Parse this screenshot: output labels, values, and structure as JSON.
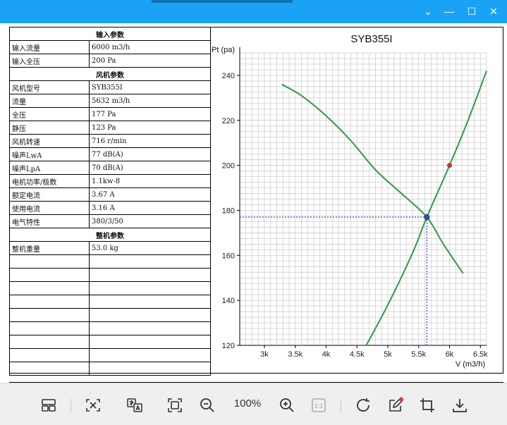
{
  "window": {
    "controls": {
      "dropdown": "⌄",
      "minimize": "—",
      "maximize": "☐",
      "close": "✕"
    },
    "accent": "#1aa3f5"
  },
  "table": {
    "rows": [
      {
        "type": "section",
        "label": "输入参数"
      },
      {
        "type": "row",
        "label": "输入流量",
        "value": "6000 m3/h"
      },
      {
        "type": "row",
        "label": "输入全压",
        "value": "200 Pa"
      },
      {
        "type": "section",
        "label": "风机参数"
      },
      {
        "type": "row",
        "label": "风机型号",
        "value": "SYB355I"
      },
      {
        "type": "row",
        "label": "流量",
        "value": "5632 m3/h"
      },
      {
        "type": "row",
        "label": "全压",
        "value": "177 Pa"
      },
      {
        "type": "row",
        "label": "静压",
        "value": "123 Pa"
      },
      {
        "type": "row",
        "label": "风机转速",
        "value": "716 r/min"
      },
      {
        "type": "row",
        "label": "噪声LwA",
        "value": "77 dB(A)"
      },
      {
        "type": "row",
        "label": "噪声LpA",
        "value": "70 dB(A)"
      },
      {
        "type": "row",
        "label": "电机功率/极数",
        "value": "1.1kw-8"
      },
      {
        "type": "row",
        "label": "额定电流",
        "value": "3.67 A"
      },
      {
        "type": "row",
        "label": "使用电流",
        "value": "3.16 A"
      },
      {
        "type": "row",
        "label": "电气特性",
        "value": "380/3/50"
      },
      {
        "type": "section",
        "label": "整机参数"
      },
      {
        "type": "row",
        "label": "整机重量",
        "value": "53.0 kg"
      },
      {
        "type": "row",
        "label": "",
        "value": ""
      },
      {
        "type": "row",
        "label": "",
        "value": ""
      },
      {
        "type": "row",
        "label": "",
        "value": ""
      },
      {
        "type": "row",
        "label": "",
        "value": ""
      },
      {
        "type": "row",
        "label": "",
        "value": ""
      },
      {
        "type": "row",
        "label": "",
        "value": ""
      },
      {
        "type": "row",
        "label": "",
        "value": ""
      },
      {
        "type": "row",
        "label": "",
        "value": ""
      },
      {
        "type": "row",
        "label": "",
        "value": ""
      }
    ]
  },
  "chart_data": {
    "type": "line",
    "title": "SYB355I",
    "xlabel": "V (m3/h)",
    "ylabel": "Pt (pa)",
    "xlim": [
      2600,
      6600
    ],
    "ylim": [
      120,
      250
    ],
    "x_ticks": [
      3000,
      3500,
      4000,
      4500,
      5000,
      5500,
      6000,
      6500
    ],
    "x_tick_labels": [
      "3k",
      "3.5k",
      "4k",
      "4.5k",
      "5k",
      "5.5k",
      "6k",
      "6.5k"
    ],
    "y_ticks": [
      120,
      140,
      160,
      180,
      200,
      220,
      240
    ],
    "grid": true,
    "series": [
      {
        "x": [
          3280,
          3600,
          4000,
          4400,
          4800,
          5200,
          5632,
          5900,
          6220
        ],
        "y": [
          236,
          231,
          222,
          211,
          198,
          188,
          177,
          165,
          152
        ],
        "color": "#2e9a47"
      },
      {
        "x": [
          4650,
          5000,
          5400,
          5632,
          6000,
          6300,
          6600
        ],
        "y": [
          120,
          138,
          161,
          177,
          200,
          220,
          242
        ],
        "color": "#2e9a47"
      }
    ],
    "operating_point": {
      "x": 5632,
      "y": 177,
      "color": "#1f5aa6"
    },
    "input_point": {
      "x": 6000,
      "y": 200,
      "color": "#c0392b"
    },
    "guide_color": "#3b3bd1"
  },
  "toolbar": {
    "zoom": "100%",
    "items": [
      "layout",
      "fit-screen",
      "translate",
      "fullscreen",
      "zoom-out",
      "zoom-in",
      "actual-size",
      "rotate",
      "edit",
      "crop",
      "download"
    ]
  }
}
